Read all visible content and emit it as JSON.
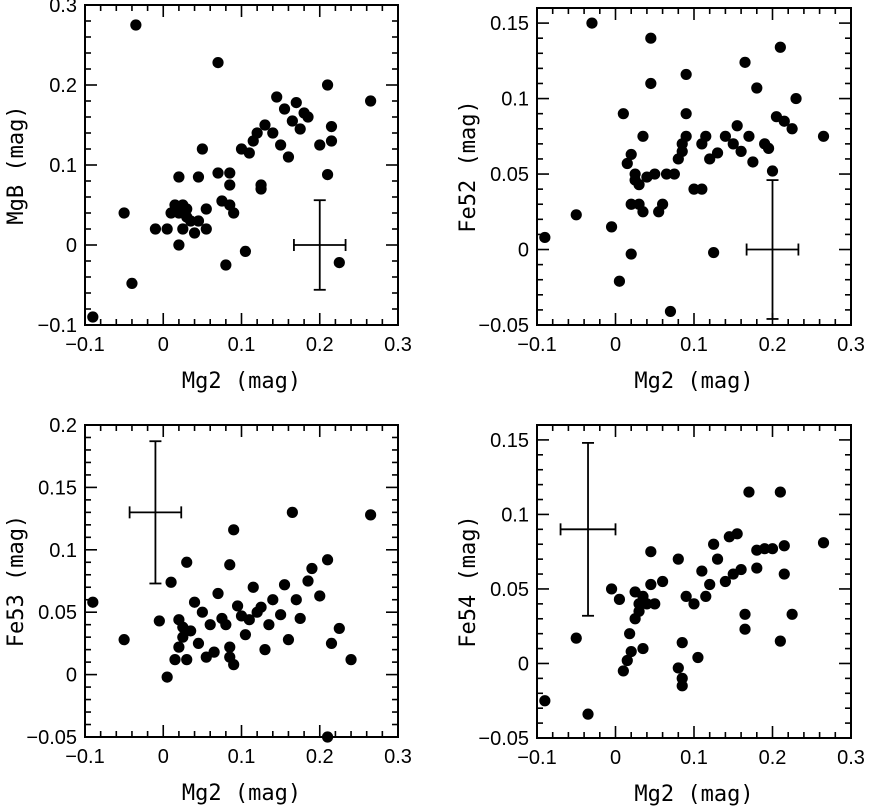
{
  "chart_data": [
    {
      "type": "scatter",
      "panel": "top-left",
      "xlabel": "Mg2 (mag)",
      "ylabel": "MgB (mag)",
      "xlim": [
        -0.1,
        0.3
      ],
      "ylim": [
        -0.1,
        0.3
      ],
      "xticks": [
        -0.1,
        0,
        0.1,
        0.2,
        0.3
      ],
      "xtick_labels": [
        "−0.1",
        "0",
        "0.1",
        "0.2",
        "0.3"
      ],
      "yticks": [
        -0.1,
        0,
        0.1,
        0.2,
        0.3
      ],
      "ytick_labels": [
        "−0.1",
        "0",
        "0.1",
        "0.2",
        "0.3"
      ],
      "error_bar": {
        "x": 0.2,
        "y": 0,
        "xerr": 0.033,
        "yerr": 0.056
      },
      "points": [
        [
          -0.09,
          -0.09
        ],
        [
          -0.035,
          0.275
        ],
        [
          -0.04,
          -0.048
        ],
        [
          -0.05,
          0.04
        ],
        [
          -0.01,
          0.02
        ],
        [
          0.005,
          0.02
        ],
        [
          0.01,
          0.04
        ],
        [
          0.015,
          0.05
        ],
        [
          0.02,
          0.085
        ],
        [
          0.02,
          0.0
        ],
        [
          0.02,
          0.04
        ],
        [
          0.025,
          0.02
        ],
        [
          0.025,
          0.05
        ],
        [
          0.03,
          0.045
        ],
        [
          0.03,
          0.035
        ],
        [
          0.035,
          0.03
        ],
        [
          0.04,
          0.015
        ],
        [
          0.045,
          0.03
        ],
        [
          0.045,
          0.085
        ],
        [
          0.05,
          0.12
        ],
        [
          0.055,
          0.045
        ],
        [
          0.055,
          0.02
        ],
        [
          0.07,
          0.09
        ],
        [
          0.07,
          0.228
        ],
        [
          0.075,
          0.055
        ],
        [
          0.08,
          -0.025
        ],
        [
          0.085,
          0.09
        ],
        [
          0.085,
          0.075
        ],
        [
          0.085,
          0.05
        ],
        [
          0.09,
          0.04
        ],
        [
          0.1,
          0.12
        ],
        [
          0.105,
          -0.008
        ],
        [
          0.11,
          0.115
        ],
        [
          0.115,
          0.13
        ],
        [
          0.12,
          0.14
        ],
        [
          0.125,
          0.075
        ],
        [
          0.125,
          0.07
        ],
        [
          0.13,
          0.15
        ],
        [
          0.14,
          0.14
        ],
        [
          0.145,
          0.185
        ],
        [
          0.15,
          0.125
        ],
        [
          0.155,
          0.17
        ],
        [
          0.16,
          0.11
        ],
        [
          0.165,
          0.155
        ],
        [
          0.17,
          0.178
        ],
        [
          0.175,
          0.145
        ],
        [
          0.18,
          0.165
        ],
        [
          0.185,
          0.16
        ],
        [
          0.2,
          0.125
        ],
        [
          0.21,
          0.2
        ],
        [
          0.21,
          0.088
        ],
        [
          0.215,
          0.148
        ],
        [
          0.215,
          0.13
        ],
        [
          0.225,
          -0.022
        ],
        [
          0.265,
          0.18
        ]
      ]
    },
    {
      "type": "scatter",
      "panel": "top-right",
      "xlabel": "Mg2 (mag)",
      "ylabel": "Fe52 (mag)",
      "xlim": [
        -0.1,
        0.3
      ],
      "ylim": [
        -0.05,
        0.16
      ],
      "xticks": [
        -0.1,
        0,
        0.1,
        0.2,
        0.3
      ],
      "xtick_labels": [
        "−0.1",
        "0",
        "0.1",
        "0.2",
        "0.3"
      ],
      "yticks": [
        -0.05,
        0,
        0.05,
        0.1,
        0.15
      ],
      "ytick_labels": [
        "−0.05",
        "0",
        "0.05",
        "0.1",
        "0.15"
      ],
      "error_bar": {
        "x": 0.2,
        "y": 0,
        "xerr": 0.033,
        "yerr": 0.046
      },
      "points": [
        [
          -0.09,
          0.008
        ],
        [
          -0.05,
          0.023
        ],
        [
          -0.03,
          0.15
        ],
        [
          -0.005,
          0.015
        ],
        [
          0.005,
          -0.021
        ],
        [
          0.01,
          0.09
        ],
        [
          0.015,
          0.057
        ],
        [
          0.02,
          0.063
        ],
        [
          0.02,
          0.03
        ],
        [
          0.02,
          -0.003
        ],
        [
          0.025,
          0.05
        ],
        [
          0.025,
          0.046
        ],
        [
          0.03,
          0.043
        ],
        [
          0.03,
          0.03
        ],
        [
          0.035,
          0.025
        ],
        [
          0.035,
          0.075
        ],
        [
          0.04,
          0.048
        ],
        [
          0.045,
          0.11
        ],
        [
          0.045,
          0.14
        ],
        [
          0.05,
          0.05
        ],
        [
          0.055,
          0.025
        ],
        [
          0.06,
          0.03
        ],
        [
          0.065,
          0.05
        ],
        [
          0.07,
          -0.041
        ],
        [
          0.075,
          0.05
        ],
        [
          0.08,
          0.06
        ],
        [
          0.085,
          0.065
        ],
        [
          0.085,
          0.07
        ],
        [
          0.09,
          0.075
        ],
        [
          0.09,
          0.09
        ],
        [
          0.09,
          0.116
        ],
        [
          0.1,
          0.04
        ],
        [
          0.11,
          0.04
        ],
        [
          0.11,
          0.07
        ],
        [
          0.115,
          0.075
        ],
        [
          0.12,
          0.06
        ],
        [
          0.125,
          -0.002
        ],
        [
          0.13,
          0.064
        ],
        [
          0.14,
          0.075
        ],
        [
          0.15,
          0.07
        ],
        [
          0.155,
          0.082
        ],
        [
          0.16,
          0.065
        ],
        [
          0.165,
          0.124
        ],
        [
          0.17,
          0.075
        ],
        [
          0.175,
          0.058
        ],
        [
          0.18,
          0.107
        ],
        [
          0.19,
          0.07
        ],
        [
          0.195,
          0.067
        ],
        [
          0.205,
          0.088
        ],
        [
          0.21,
          0.134
        ],
        [
          0.215,
          0.085
        ],
        [
          0.225,
          0.08
        ],
        [
          0.23,
          0.1
        ],
        [
          0.265,
          0.075
        ],
        [
          0.2,
          0.052
        ]
      ]
    },
    {
      "type": "scatter",
      "panel": "bottom-left",
      "xlabel": "Mg2 (mag)",
      "ylabel": "Fe53 (mag)",
      "xlim": [
        -0.1,
        0.3
      ],
      "ylim": [
        -0.05,
        0.2
      ],
      "xticks": [
        -0.1,
        0,
        0.1,
        0.2,
        0.3
      ],
      "xtick_labels": [
        "−0.1",
        "0",
        "0.1",
        "0.2",
        "0.3"
      ],
      "yticks": [
        -0.05,
        0,
        0.05,
        0.1,
        0.15,
        0.2
      ],
      "ytick_labels": [
        "−0.05",
        "0",
        "0.05",
        "0.1",
        "0.15",
        "0.2"
      ],
      "error_bar": {
        "x": -0.01,
        "y": 0.13,
        "xerr": 0.033,
        "yerr": 0.057
      },
      "points": [
        [
          -0.09,
          0.058
        ],
        [
          -0.05,
          0.028
        ],
        [
          -0.005,
          0.043
        ],
        [
          0.005,
          -0.002
        ],
        [
          0.01,
          0.074
        ],
        [
          0.015,
          0.012
        ],
        [
          0.02,
          0.022
        ],
        [
          0.02,
          0.044
        ],
        [
          0.025,
          0.038
        ],
        [
          0.025,
          0.03
        ],
        [
          0.03,
          0.09
        ],
        [
          0.03,
          0.012
        ],
        [
          0.035,
          0.035
        ],
        [
          0.04,
          0.058
        ],
        [
          0.045,
          0.025
        ],
        [
          0.05,
          0.05
        ],
        [
          0.055,
          0.014
        ],
        [
          0.06,
          0.04
        ],
        [
          0.065,
          0.018
        ],
        [
          0.07,
          0.065
        ],
        [
          0.075,
          0.045
        ],
        [
          0.08,
          0.04
        ],
        [
          0.085,
          0.022
        ],
        [
          0.085,
          0.014
        ],
        [
          0.085,
          0.088
        ],
        [
          0.09,
          0.116
        ],
        [
          0.09,
          0.008
        ],
        [
          0.095,
          0.055
        ],
        [
          0.1,
          0.047
        ],
        [
          0.105,
          0.032
        ],
        [
          0.11,
          0.044
        ],
        [
          0.115,
          0.07
        ],
        [
          0.12,
          0.05
        ],
        [
          0.125,
          0.054
        ],
        [
          0.13,
          0.02
        ],
        [
          0.135,
          0.04
        ],
        [
          0.14,
          0.06
        ],
        [
          0.15,
          0.048
        ],
        [
          0.155,
          0.072
        ],
        [
          0.16,
          0.028
        ],
        [
          0.165,
          0.13
        ],
        [
          0.17,
          0.06
        ],
        [
          0.175,
          0.045
        ],
        [
          0.185,
          0.075
        ],
        [
          0.19,
          0.085
        ],
        [
          0.2,
          0.063
        ],
        [
          0.21,
          0.092
        ],
        [
          0.21,
          -0.05
        ],
        [
          0.215,
          0.025
        ],
        [
          0.225,
          0.037
        ],
        [
          0.24,
          0.012
        ],
        [
          0.265,
          0.128
        ]
      ]
    },
    {
      "type": "scatter",
      "panel": "bottom-right",
      "xlabel": "Mg2 (mag)",
      "ylabel": "Fe54 (mag)",
      "xlim": [
        -0.1,
        0.3
      ],
      "ylim": [
        -0.05,
        0.16
      ],
      "xticks": [
        -0.1,
        0,
        0.1,
        0.2,
        0.3
      ],
      "xtick_labels": [
        "−0.1",
        "0",
        "0.1",
        "0.2",
        "0.3"
      ],
      "yticks": [
        -0.05,
        0,
        0.05,
        0.1,
        0.15
      ],
      "ytick_labels": [
        "−0.05",
        "0",
        "0.05",
        "0.1",
        "0.15"
      ],
      "error_bar": {
        "x": -0.035,
        "y": 0.09,
        "xerr": 0.035,
        "yerr": 0.058
      },
      "points": [
        [
          -0.09,
          -0.025
        ],
        [
          -0.05,
          0.017
        ],
        [
          -0.035,
          -0.034
        ],
        [
          -0.005,
          0.05
        ],
        [
          0.005,
          0.043
        ],
        [
          0.01,
          -0.005
        ],
        [
          0.015,
          0.002
        ],
        [
          0.018,
          0.02
        ],
        [
          0.02,
          0.008
        ],
        [
          0.025,
          0.03
        ],
        [
          0.025,
          0.048
        ],
        [
          0.03,
          0.04
        ],
        [
          0.03,
          0.035
        ],
        [
          0.035,
          0.045
        ],
        [
          0.035,
          0.01
        ],
        [
          0.04,
          0.04
        ],
        [
          0.045,
          0.075
        ],
        [
          0.045,
          0.053
        ],
        [
          0.05,
          0.04
        ],
        [
          0.06,
          0.055
        ],
        [
          0.08,
          0.07
        ],
        [
          0.08,
          -0.003
        ],
        [
          0.085,
          0.014
        ],
        [
          0.085,
          -0.015
        ],
        [
          0.085,
          -0.01
        ],
        [
          0.09,
          0.045
        ],
        [
          0.1,
          0.04
        ],
        [
          0.105,
          0.004
        ],
        [
          0.11,
          0.062
        ],
        [
          0.115,
          0.045
        ],
        [
          0.12,
          0.053
        ],
        [
          0.125,
          0.08
        ],
        [
          0.13,
          0.07
        ],
        [
          0.14,
          0.055
        ],
        [
          0.145,
          0.085
        ],
        [
          0.15,
          0.06
        ],
        [
          0.155,
          0.087
        ],
        [
          0.16,
          0.063
        ],
        [
          0.165,
          0.023
        ],
        [
          0.165,
          0.033
        ],
        [
          0.17,
          0.115
        ],
        [
          0.18,
          0.076
        ],
        [
          0.18,
          0.064
        ],
        [
          0.19,
          0.077
        ],
        [
          0.2,
          0.077
        ],
        [
          0.21,
          0.015
        ],
        [
          0.21,
          0.115
        ],
        [
          0.215,
          0.079
        ],
        [
          0.215,
          0.06
        ],
        [
          0.225,
          0.033
        ],
        [
          0.265,
          0.081
        ]
      ]
    }
  ]
}
